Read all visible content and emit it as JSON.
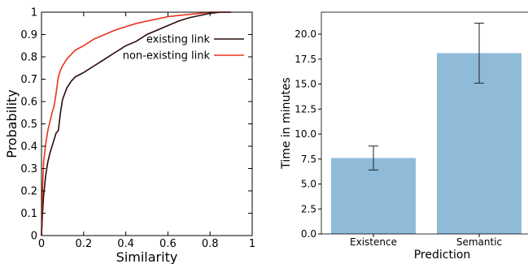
{
  "chart_data": [
    {
      "type": "line",
      "xlabel": "Similarity",
      "ylabel": "Probability",
      "xlim": [
        0,
        1
      ],
      "ylim": [
        0,
        1
      ],
      "x_ticks": [
        "0",
        "0.2",
        "0.4",
        "0.6",
        "0.8",
        "1"
      ],
      "y_ticks": [
        "0",
        "0.1",
        "0.2",
        "0.3",
        "0.4",
        "0.5",
        "0.6",
        "0.7",
        "0.8",
        "0.9",
        "1"
      ],
      "grid": false,
      "legend_position": "upper-right",
      "series": [
        {
          "name": "existing link",
          "color": "#2b0a0a",
          "x": [
            0,
            0.005,
            0.01,
            0.02,
            0.03,
            0.04,
            0.05,
            0.06,
            0.07,
            0.08,
            0.09,
            0.1,
            0.12,
            0.14,
            0.16,
            0.18,
            0.2,
            0.25,
            0.3,
            0.35,
            0.4,
            0.45,
            0.5,
            0.55,
            0.6,
            0.65,
            0.7,
            0.75,
            0.8,
            0.85,
            0.9
          ],
          "y": [
            0,
            0.1,
            0.18,
            0.27,
            0.33,
            0.37,
            0.4,
            0.43,
            0.46,
            0.47,
            0.55,
            0.61,
            0.66,
            0.69,
            0.71,
            0.72,
            0.73,
            0.76,
            0.79,
            0.82,
            0.85,
            0.87,
            0.9,
            0.92,
            0.94,
            0.96,
            0.975,
            0.985,
            0.995,
            1.0,
            1.0
          ]
        },
        {
          "name": "non-existing link",
          "color": "#e8341c",
          "x": [
            0,
            0.005,
            0.01,
            0.02,
            0.03,
            0.04,
            0.05,
            0.06,
            0.07,
            0.08,
            0.09,
            0.1,
            0.12,
            0.14,
            0.16,
            0.18,
            0.2,
            0.25,
            0.3,
            0.35,
            0.4,
            0.45,
            0.5,
            0.55,
            0.6,
            0.65,
            0.7,
            0.75,
            0.8,
            0.85,
            0.9
          ],
          "y": [
            0,
            0.22,
            0.33,
            0.41,
            0.47,
            0.51,
            0.55,
            0.58,
            0.64,
            0.71,
            0.74,
            0.76,
            0.79,
            0.81,
            0.83,
            0.84,
            0.85,
            0.88,
            0.9,
            0.92,
            0.935,
            0.95,
            0.96,
            0.97,
            0.98,
            0.985,
            0.99,
            0.995,
            1.0,
            1.0,
            1.0
          ]
        }
      ]
    },
    {
      "type": "bar",
      "xlabel": "Prediction",
      "ylabel": "Time in minutes",
      "categories": [
        "Existence",
        "Semantic"
      ],
      "values": [
        7.6,
        18.1
      ],
      "errors": [
        1.2,
        3.0
      ],
      "ylim": [
        0,
        22.2
      ],
      "y_ticks": [
        "0.0",
        "2.5",
        "5.0",
        "7.5",
        "10.0",
        "12.5",
        "15.0",
        "17.5",
        "20.0"
      ],
      "bar_color": "#8fbbd9",
      "grid": false
    }
  ]
}
